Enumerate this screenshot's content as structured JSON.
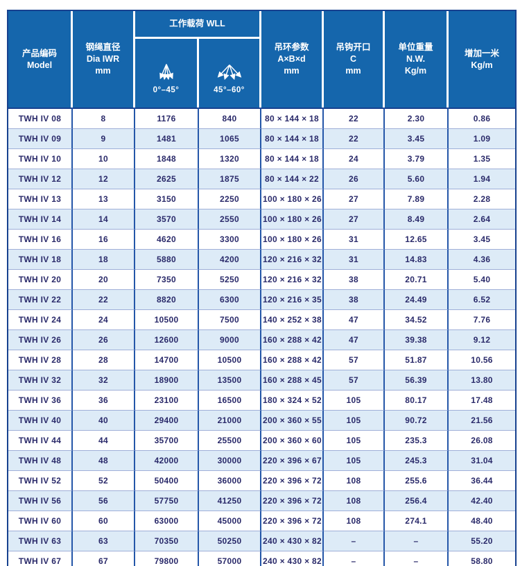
{
  "page": {
    "title": "TWH IV 产品规格表",
    "colors": {
      "header_bg": "#1566ac",
      "header_text": "#ffffff",
      "stripe_row_bg": "#ddebf7",
      "grid_line": "#2456a8",
      "outer_border": "#17418f",
      "row_divider": "#9fafd8",
      "cell_text": "#2a2a6a"
    }
  },
  "table": {
    "header": {
      "model": "产品编码\nModel",
      "dia": "钢绳直径\nDia IWR\nmm",
      "wll": "工作载荷 WLL",
      "sub_0_45": "0°–45°",
      "sub_45_60": "45°–60°",
      "ring": "吊环参数\nA×B×d\nmm",
      "hook": "吊钩开口\nC\nmm",
      "weight": "单位重量\nN.W.\nKg/m",
      "extra": "增加一米\nKg/m"
    },
    "icons": {
      "narrow": "sling-angle-narrow-icon",
      "wide": "sling-angle-wide-icon"
    },
    "column_keys": [
      "model",
      "dia",
      "wll-0-45",
      "wll-45-60",
      "ring-dims",
      "hook-opening",
      "unit-weight",
      "add-per-meter"
    ],
    "rows": [
      [
        "TWH IV 08",
        "8",
        "1176",
        "840",
        "80 × 144 × 18",
        "22",
        "2.30",
        "0.86"
      ],
      [
        "TWH IV 09",
        "9",
        "1481",
        "1065",
        "80 × 144 × 18",
        "22",
        "3.45",
        "1.09"
      ],
      [
        "TWH IV 10",
        "10",
        "1848",
        "1320",
        "80 × 144 × 18",
        "24",
        "3.79",
        "1.35"
      ],
      [
        "TWH IV 12",
        "12",
        "2625",
        "1875",
        "80 × 144 × 22",
        "26",
        "5.60",
        "1.94"
      ],
      [
        "TWH IV 13",
        "13",
        "3150",
        "2250",
        "100 × 180 × 26",
        "27",
        "7.89",
        "2.28"
      ],
      [
        "TWH IV 14",
        "14",
        "3570",
        "2550",
        "100 × 180 × 26",
        "27",
        "8.49",
        "2.64"
      ],
      [
        "TWH IV 16",
        "16",
        "4620",
        "3300",
        "100 × 180 × 26",
        "31",
        "12.65",
        "3.45"
      ],
      [
        "TWH IV 18",
        "18",
        "5880",
        "4200",
        "120 × 216 × 32",
        "31",
        "14.83",
        "4.36"
      ],
      [
        "TWH IV 20",
        "20",
        "7350",
        "5250",
        "120 × 216 × 32",
        "38",
        "20.71",
        "5.40"
      ],
      [
        "TWH IV 22",
        "22",
        "8820",
        "6300",
        "120 × 216 × 35",
        "38",
        "24.49",
        "6.52"
      ],
      [
        "TWH IV 24",
        "24",
        "10500",
        "7500",
        "140 × 252 × 38",
        "47",
        "34.52",
        "7.76"
      ],
      [
        "TWH IV 26",
        "26",
        "12600",
        "9000",
        "160 × 288 × 42",
        "47",
        "39.38",
        "9.12"
      ],
      [
        "TWH IV 28",
        "28",
        "14700",
        "10500",
        "160 × 288 × 42",
        "57",
        "51.87",
        "10.56"
      ],
      [
        "TWH IV 32",
        "32",
        "18900",
        "13500",
        "160 × 288 × 45",
        "57",
        "56.39",
        "13.80"
      ],
      [
        "TWH IV 36",
        "36",
        "23100",
        "16500",
        "180 × 324 × 52",
        "105",
        "80.17",
        "17.48"
      ],
      [
        "TWH IV 40",
        "40",
        "29400",
        "21000",
        "200 × 360 × 55",
        "105",
        "90.72",
        "21.56"
      ],
      [
        "TWH IV 44",
        "44",
        "35700",
        "25500",
        "200 × 360 × 60",
        "105",
        "235.3",
        "26.08"
      ],
      [
        "TWH IV 48",
        "48",
        "42000",
        "30000",
        "220 × 396 × 67",
        "105",
        "245.3",
        "31.04"
      ],
      [
        "TWH IV 52",
        "52",
        "50400",
        "36000",
        "220 × 396 × 72",
        "108",
        "255.6",
        "36.44"
      ],
      [
        "TWH IV 56",
        "56",
        "57750",
        "41250",
        "220 × 396 × 72",
        "108",
        "256.4",
        "42.40"
      ],
      [
        "TWH IV 60",
        "60",
        "63000",
        "45000",
        "220 × 396 × 72",
        "108",
        "274.1",
        "48.40"
      ],
      [
        "TWH IV 63",
        "63",
        "70350",
        "50250",
        "240 × 430 × 82",
        "–",
        "–",
        "55.20"
      ],
      [
        "TWH IV 67",
        "67",
        "79800",
        "57000",
        "240 × 430 × 82",
        "–",
        "–",
        "58.80"
      ]
    ]
  }
}
